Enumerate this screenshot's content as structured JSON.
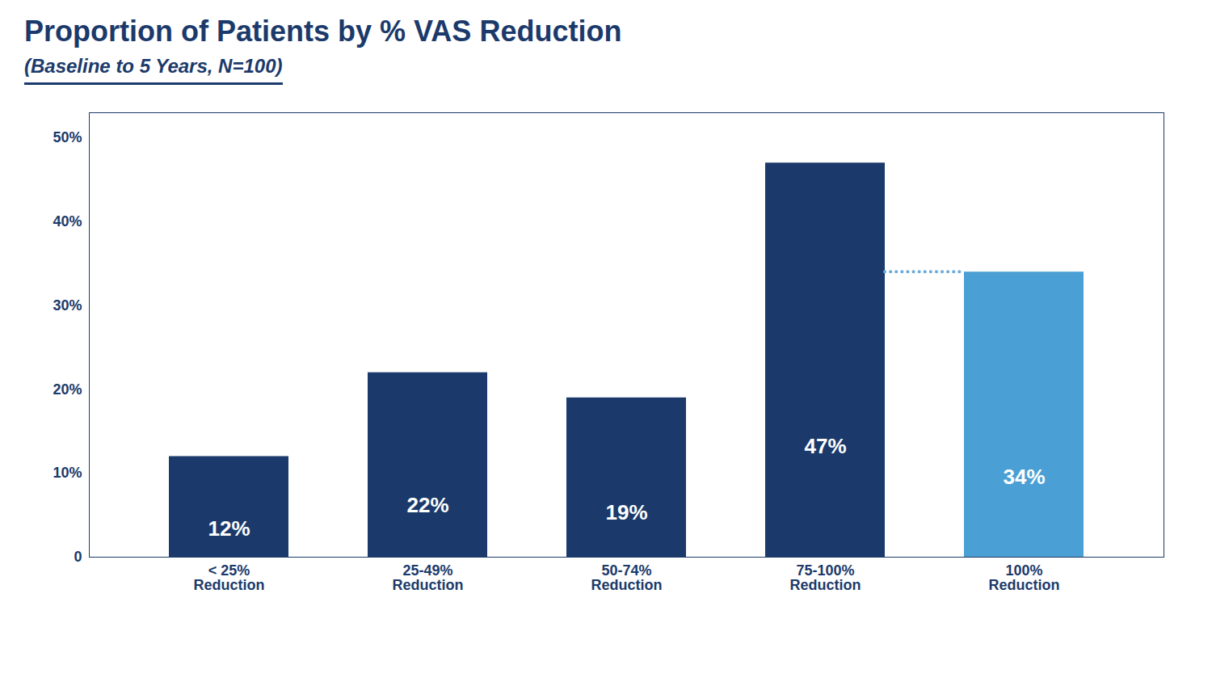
{
  "chart_data": {
    "type": "bar",
    "title": "Proportion of Patients by % VAS Reduction",
    "subtitle": "(Baseline to 5 Years, N=100)",
    "categories": [
      "< 25%\nReduction",
      "25-49%\nReduction",
      "50-74%\nReduction",
      "75-100%\nReduction",
      "100%\nReduction"
    ],
    "values": [
      12,
      22,
      19,
      47,
      34
    ],
    "colors": [
      "#1b3a6b",
      "#1b3a6b",
      "#1b3a6b",
      "#1b3a6b",
      "#4a9fd4"
    ],
    "data_labels": true,
    "value_labels": [
      "12%",
      "22%",
      "19%",
      "47%",
      "34%"
    ],
    "ylim": [
      0,
      53
    ],
    "yticks": [
      0,
      {
        "value": 10,
        "label": "10%"
      },
      {
        "value": 20,
        "label": "20%"
      },
      {
        "value": 30,
        "label": "30%"
      },
      {
        "value": 40,
        "label": "40%"
      },
      {
        "value": 50,
        "label": "50%"
      }
    ],
    "grid": false,
    "connector": {
      "y": 34,
      "color": "#6aabdd",
      "line_style": "dotted",
      "between": [
        "75-100%\nReduction",
        "100%\nReduction"
      ]
    }
  }
}
